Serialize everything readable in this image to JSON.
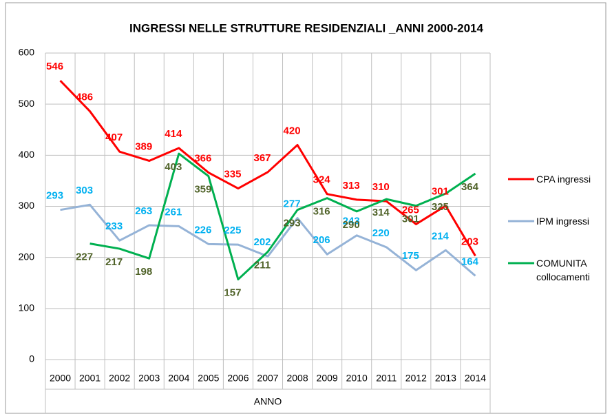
{
  "chart_data": {
    "type": "line",
    "title": "INGRESSI NELLE STRUTTURE RESIDENZIALI _ANNI 2000-2014",
    "x_label": "ANNO",
    "categories": [
      "2000",
      "2001",
      "2002",
      "2003",
      "2004",
      "2005",
      "2006",
      "2007",
      "2008",
      "2009",
      "2010",
      "2011",
      "2012",
      "2013",
      "2014"
    ],
    "series": [
      {
        "name": "CPA ingressi",
        "color": "#ff0000",
        "label_color": "#ff0000",
        "values": [
          546,
          486,
          407,
          389,
          414,
          366,
          335,
          367,
          420,
          324,
          313,
          310,
          265,
          301,
          203
        ]
      },
      {
        "name": "IPM ingressi",
        "color": "#95b3d7",
        "label_color": "#00b0f0",
        "values": [
          293,
          303,
          233,
          263,
          261,
          226,
          225,
          202,
          277,
          206,
          243,
          220,
          175,
          214,
          164
        ]
      },
      {
        "name": "COMUNITA collocamenti",
        "color": "#00b050",
        "label_color": "#4f6228",
        "values": [
          null,
          227,
          217,
          198,
          403,
          359,
          157,
          211,
          293,
          316,
          290,
          314,
          301,
          325,
          364
        ]
      }
    ],
    "ylim": [
      0,
      600
    ],
    "yticks": [
      0,
      100,
      200,
      300,
      400,
      500,
      600
    ],
    "grid": true,
    "legend": "right"
  }
}
